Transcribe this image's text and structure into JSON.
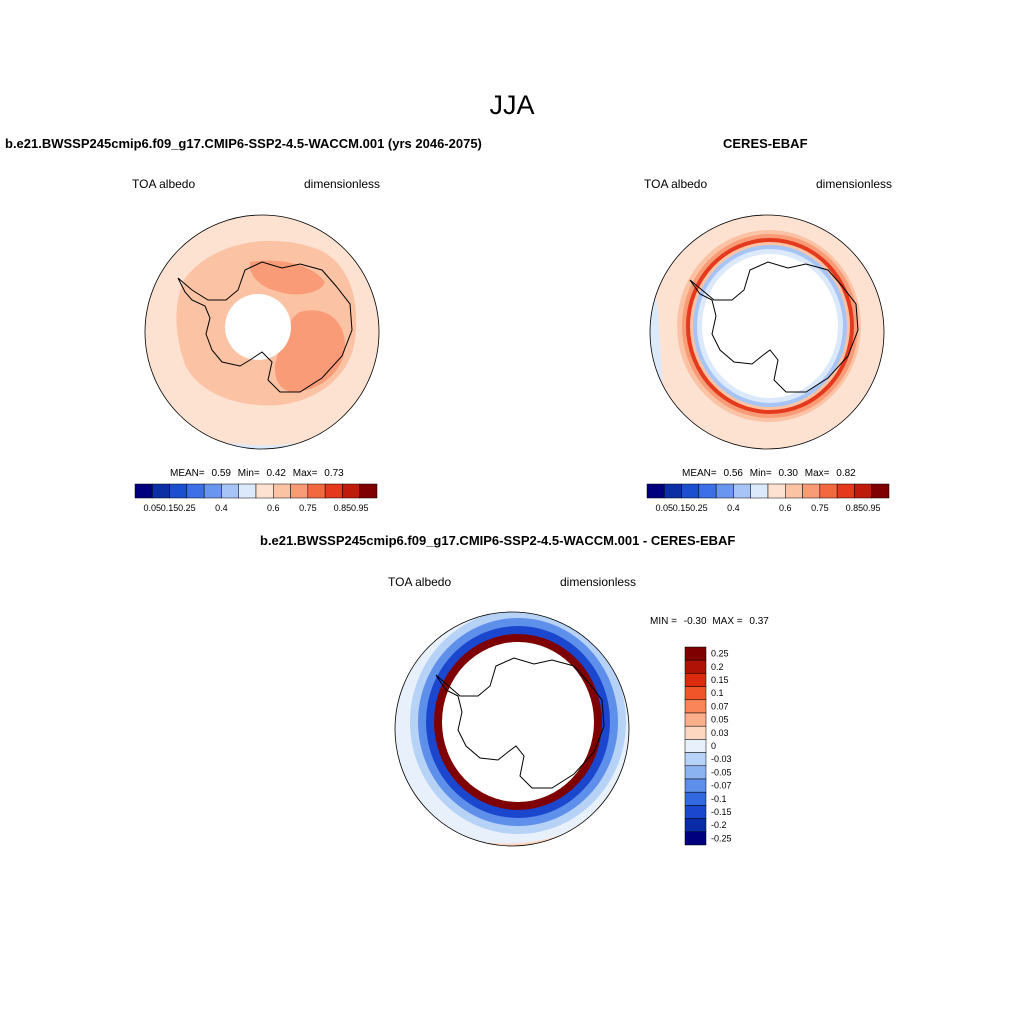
{
  "page": {
    "title": "JJA"
  },
  "colors": {
    "abs_levels": [
      "#00007f",
      "#0d2fa5",
      "#1c4fd0",
      "#3d6fe8",
      "#6a96f0",
      "#a7c4f7",
      "#dbe9fb",
      "#fde2d2",
      "#fbc3a4",
      "#f89b76",
      "#f2683f",
      "#e4391c",
      "#c01a0a",
      "#7f0000"
    ],
    "diff_levels": [
      "#7f0000",
      "#b01205",
      "#dc2a0d",
      "#f0552a",
      "#f98559",
      "#fbae8c",
      "#fdd7c0",
      "#e8f1fb",
      "#b7d2f7",
      "#8bb2f1",
      "#5e8fea",
      "#3268e0",
      "#1a47cd",
      "#0a2ba8",
      "#00007f"
    ],
    "coast": "#000000",
    "land": "#ffffff"
  },
  "panels": [
    {
      "title": "b.e21.BWSSP245cmip6.f09_g17.CMIP6-SSP2-4.5-WACCM.001 (yrs 2046-2075)",
      "left_label": "TOA albedo",
      "right_label": "dimensionless",
      "stats": {
        "mean_label": "MEAN=",
        "mean": "0.59",
        "min_label": "Min=",
        "min": "0.42",
        "max_label": "Max=",
        "max": "0.73"
      }
    },
    {
      "title": "CERES-EBAF",
      "left_label": "TOA albedo",
      "right_label": "dimensionless",
      "stats": {
        "mean_label": "MEAN=",
        "mean": "0.56",
        "min_label": "Min=",
        "min": "0.30",
        "max_label": "Max=",
        "max": "0.82"
      }
    },
    {
      "title": "b.e21.BWSSP245cmip6.f09_g17.CMIP6-SSP2-4.5-WACCM.001 - CERES-EBAF",
      "left_label": "TOA albedo",
      "right_label": "dimensionless",
      "stats": {
        "min_label": "MIN =",
        "min": "-0.30",
        "max_label": "MAX =",
        "max": "0.37"
      }
    }
  ],
  "chart_data": [
    {
      "type": "heatmap",
      "projection": "south-polar-stereographic",
      "title": "b.e21.BWSSP245cmip6.f09_g17.CMIP6-SSP2-4.5-WACCM.001 (yrs 2046-2075)",
      "variable": "TOA albedo",
      "units": "dimensionless",
      "mean": 0.59,
      "min": 0.42,
      "max": 0.73,
      "colorbar": {
        "orientation": "horizontal",
        "tick_labels": [
          "0.05",
          "0.15",
          "0.25",
          "0.4",
          "0.6",
          "0.75",
          "0.85",
          "0.95"
        ]
      }
    },
    {
      "type": "heatmap",
      "projection": "south-polar-stereographic",
      "title": "CERES-EBAF",
      "variable": "TOA albedo",
      "units": "dimensionless",
      "mean": 0.56,
      "min": 0.3,
      "max": 0.82,
      "colorbar": {
        "orientation": "horizontal",
        "tick_labels": [
          "0.05",
          "0.15",
          "0.25",
          "0.4",
          "0.6",
          "0.75",
          "0.85",
          "0.95"
        ]
      }
    },
    {
      "type": "heatmap",
      "projection": "south-polar-stereographic",
      "title": "b.e21.BWSSP245cmip6.f09_g17.CMIP6-SSP2-4.5-WACCM.001 - CERES-EBAF",
      "variable": "TOA albedo",
      "units": "dimensionless",
      "min": -0.3,
      "max": 0.37,
      "colorbar": {
        "orientation": "vertical",
        "tick_labels": [
          "0.25",
          "0.2",
          "0.15",
          "0.1",
          "0.07",
          "0.05",
          "0.03",
          "0",
          "-0.03",
          "-0.05",
          "-0.07",
          "-0.1",
          "-0.15",
          "-0.2",
          "-0.25"
        ]
      }
    }
  ]
}
